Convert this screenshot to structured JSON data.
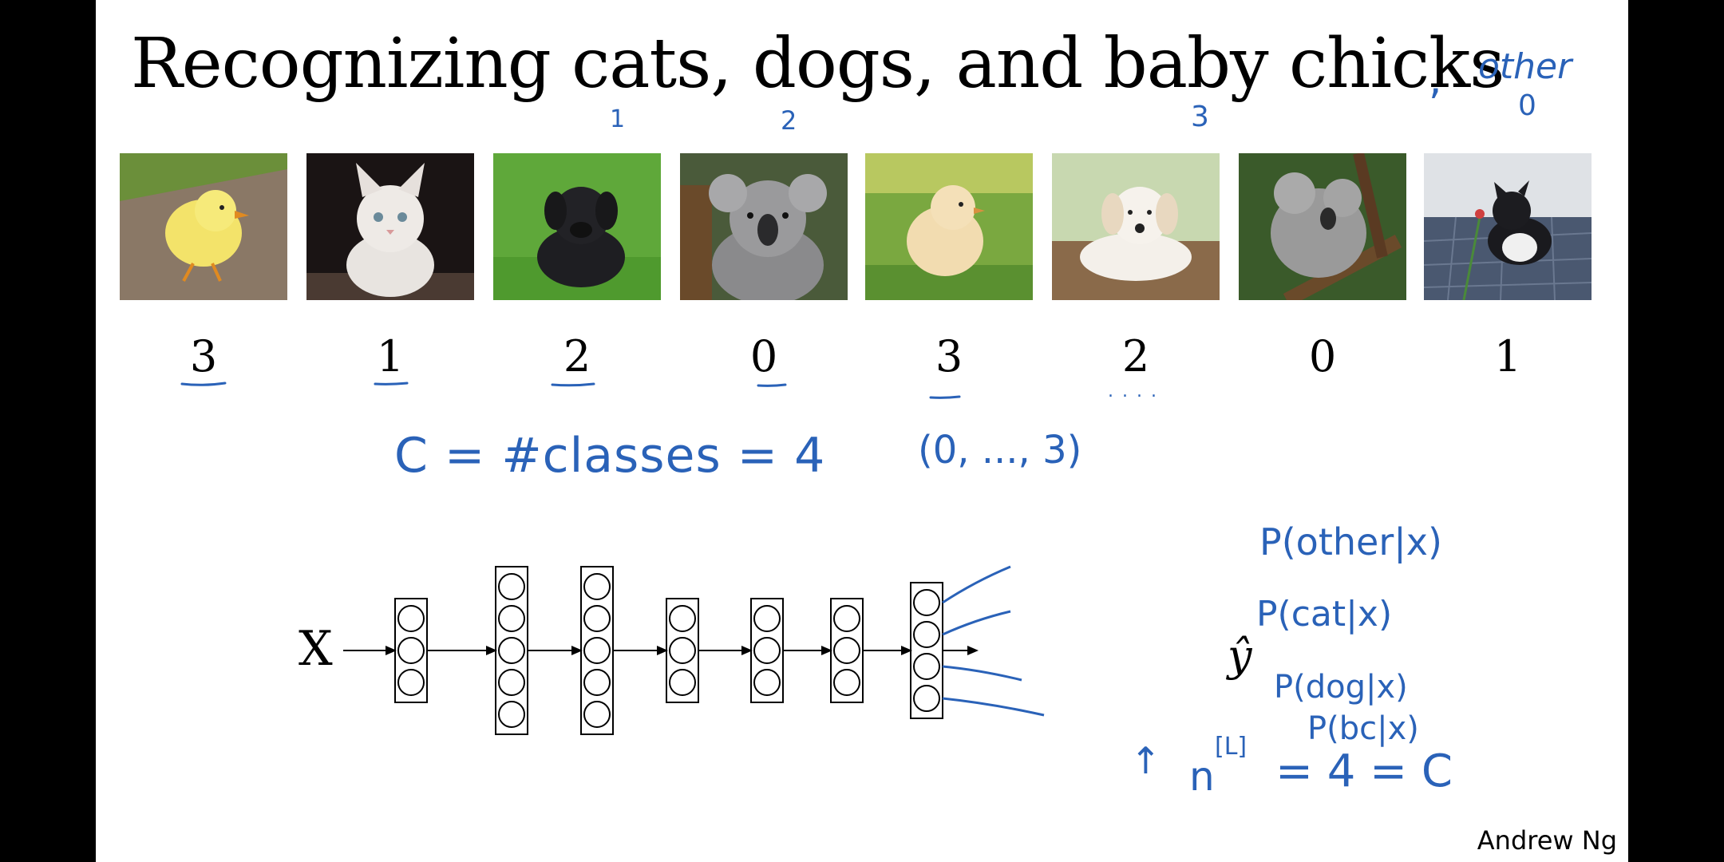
{
  "title": "Recognizing cats, dogs, and baby chicks",
  "annotations": {
    "comma": ",",
    "other": "other",
    "other_index": "0",
    "cats_index": "1",
    "dogs_index": "2",
    "chicks_index": "3",
    "num_classes": "C = #classes = 4",
    "range": "(0, ..., 3)",
    "dots": ". . . .",
    "n_layer": "n",
    "n_superscript": "[L]",
    "n_eq": "= 4 = C"
  },
  "images": [
    {
      "subject": "baby chick",
      "label": "3",
      "underlined": true
    },
    {
      "subject": "kitten",
      "label": "1",
      "underlined": true
    },
    {
      "subject": "puppy",
      "label": "2",
      "underlined": true
    },
    {
      "subject": "koala",
      "label": "0",
      "underlined": true
    },
    {
      "subject": "baby chick",
      "label": "3",
      "underlined": true
    },
    {
      "subject": "puppy",
      "label": "2",
      "underlined": false
    },
    {
      "subject": "koala",
      "label": "0",
      "underlined": false
    },
    {
      "subject": "kitten",
      "label": "1",
      "underlined": false
    }
  ],
  "network": {
    "input_label": "X",
    "output_label": "ŷ",
    "layers": [
      3,
      5,
      5,
      3,
      3,
      3,
      4
    ],
    "outputs": [
      "P(other|x)",
      "P(cat|x)",
      "P(dog|x)",
      "P(bc|x)"
    ]
  },
  "author": "Andrew Ng",
  "colors": {
    "ink": "#2a62b8",
    "text": "#000000",
    "background": "#ffffff"
  }
}
